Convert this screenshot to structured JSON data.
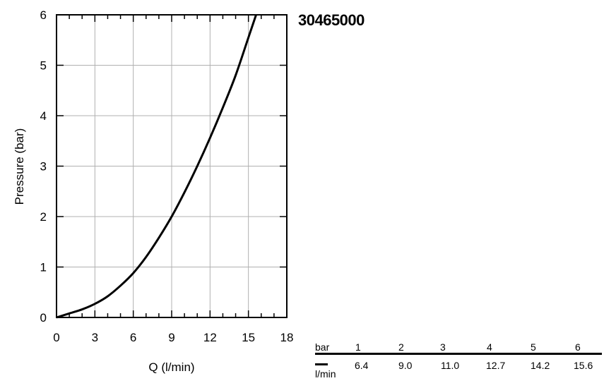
{
  "product_code": "30465000",
  "chart_data": {
    "type": "line",
    "title": "",
    "xlabel": "Q (l/min)",
    "ylabel": "Pressure (bar)",
    "xlim": [
      0,
      18
    ],
    "ylim": [
      0,
      6
    ],
    "x_ticks": [
      0,
      3,
      6,
      9,
      12,
      15,
      18
    ],
    "y_ticks": [
      0,
      1,
      2,
      3,
      4,
      5,
      6
    ],
    "grid": true,
    "series": [
      {
        "x": [
          0,
          1,
          2,
          3,
          4,
          5,
          6,
          7,
          8,
          9,
          10,
          11,
          12,
          13,
          14,
          15,
          15.6
        ],
        "y": [
          0,
          0.08,
          0.16,
          0.27,
          0.42,
          0.63,
          0.88,
          1.2,
          1.58,
          2.0,
          2.48,
          3.0,
          3.56,
          4.16,
          4.8,
          5.55,
          6.0
        ]
      }
    ]
  },
  "table": {
    "pressure_unit": "bar",
    "flow_unit": "l/min",
    "pressures": [
      "1",
      "2",
      "3",
      "4",
      "5",
      "6"
    ],
    "flows": [
      "6.4",
      "9.0",
      "11.0",
      "12.7",
      "14.2",
      "15.6"
    ]
  }
}
